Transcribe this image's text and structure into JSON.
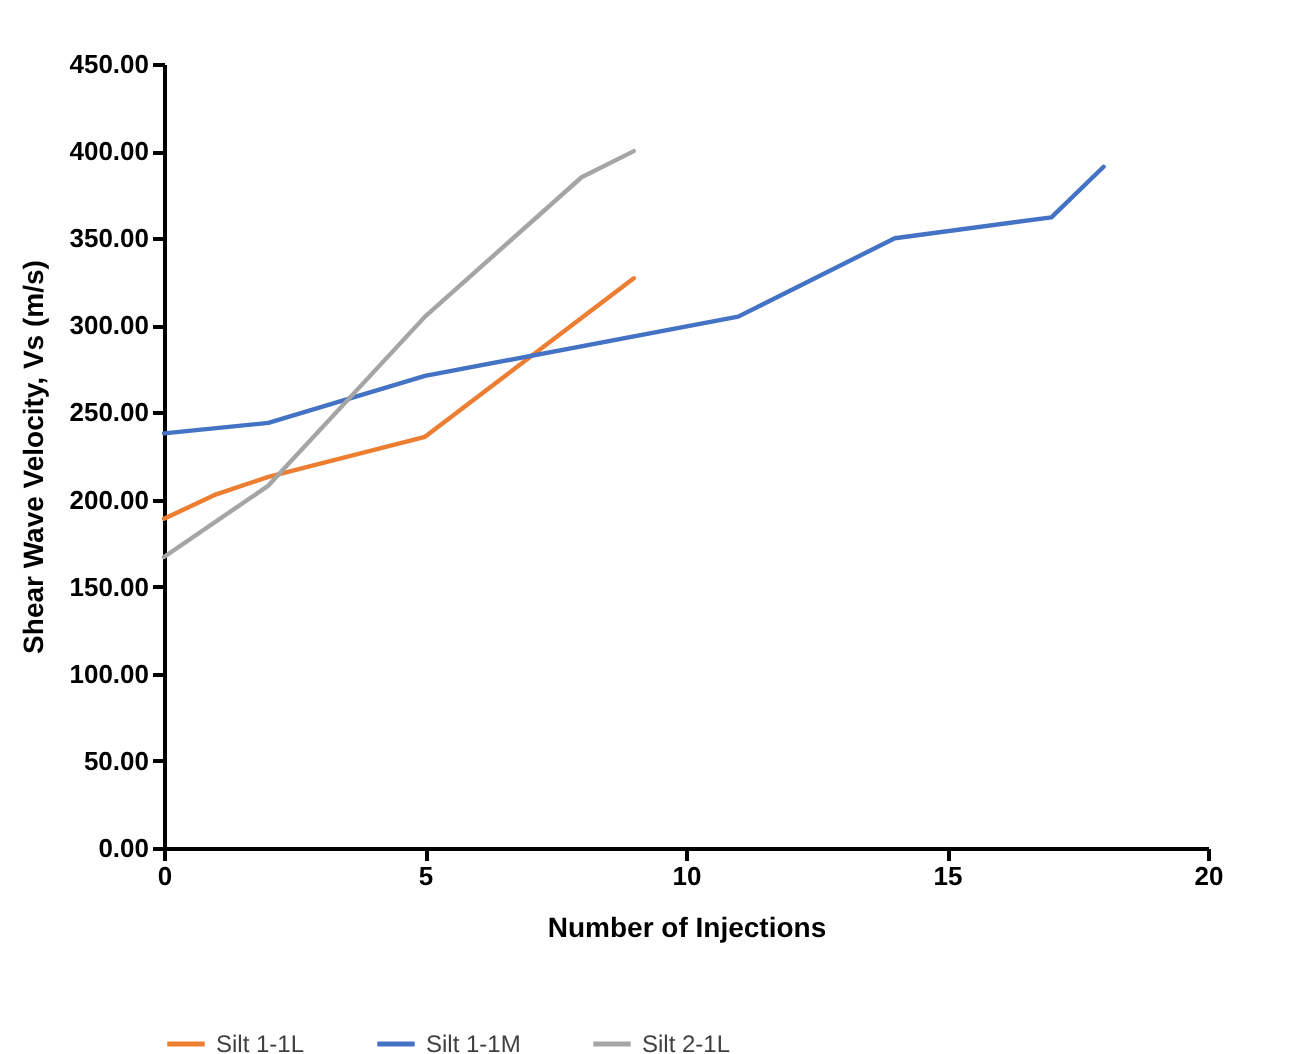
{
  "chart_data": {
    "type": "line",
    "xlabel": "Number of Injections",
    "ylabel": "Shear Wave Velocity, Vs (m/s)",
    "xlim": [
      0,
      20
    ],
    "xticks": [
      0,
      5,
      10,
      15,
      20
    ],
    "ylim": [
      0,
      450
    ],
    "yticks": [
      {
        "value": 0,
        "label": "0.00"
      },
      {
        "value": 50,
        "label": "50.00"
      },
      {
        "value": 100,
        "label": "100.00"
      },
      {
        "value": 150,
        "label": "150.00"
      },
      {
        "value": 200,
        "label": "200.00"
      },
      {
        "value": 250,
        "label": "250.00"
      },
      {
        "value": 300,
        "label": "300.00"
      },
      {
        "value": 350,
        "label": "350.00"
      },
      {
        "value": 400,
        "label": "400.00"
      },
      {
        "value": 450,
        "label": "450.00"
      }
    ],
    "grid": false,
    "legend": "bottom",
    "marker": "none",
    "line_style": "solid",
    "series": [
      {
        "name": "Silt 1-1L",
        "color": "#ed7d31",
        "x": [
          0,
          1,
          2,
          5,
          9
        ],
        "values": [
          189,
          203,
          213,
          236,
          327
        ]
      },
      {
        "name": "Silt 1-1M",
        "color": "#4472c4",
        "x": [
          0,
          2,
          5,
          11,
          14,
          17,
          18
        ],
        "values": [
          238,
          244,
          271,
          305,
          350,
          362,
          391
        ]
      },
      {
        "name": "Silt 2-1L",
        "color": "#a5a5a5",
        "x": [
          0,
          2,
          5,
          8,
          9
        ],
        "values": [
          167,
          208,
          305,
          385,
          400
        ]
      }
    ]
  }
}
